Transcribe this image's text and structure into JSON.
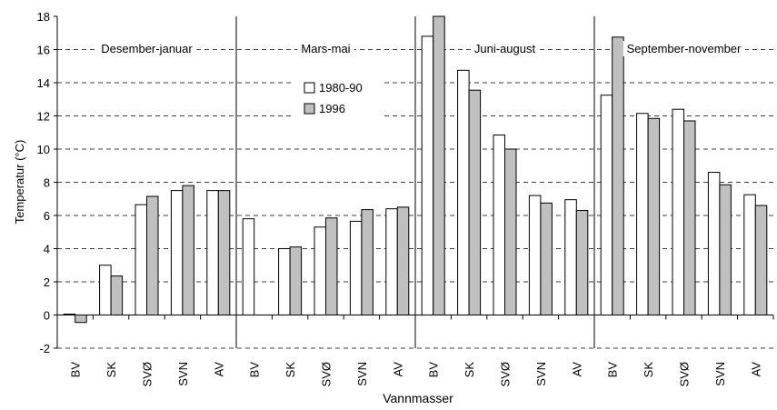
{
  "chart_data": {
    "type": "bar",
    "title": "",
    "xlabel": "Vannmasser",
    "ylabel": "Temperatur (°C)",
    "ylim": [
      -2,
      18
    ],
    "yticks": [
      -2,
      0,
      2,
      4,
      6,
      8,
      10,
      12,
      14,
      16,
      18
    ],
    "grid": "horizontal dashed",
    "legend_position": "top-center",
    "groups": [
      "Desember-januar",
      "Mars-mai",
      "Juni-august",
      "September-november"
    ],
    "water_masses": [
      "BV",
      "SK",
      "SVØ",
      "SVN",
      "AV"
    ],
    "categories": [
      "BV",
      "SK",
      "SVØ",
      "SVN",
      "AV",
      "BV",
      "SK",
      "SVØ",
      "SVN",
      "AV",
      "BV",
      "SK",
      "SVØ",
      "SVN",
      "AV",
      "BV",
      "SK",
      "SVØ",
      "SVN",
      "AV"
    ],
    "series": [
      {
        "name": "1980-90",
        "color": "#ffffff",
        "values": [
          0.05,
          3.0,
          6.65,
          7.5,
          7.5,
          5.8,
          4.0,
          5.3,
          5.65,
          6.4,
          16.8,
          14.75,
          10.85,
          7.2,
          6.95,
          13.25,
          12.15,
          12.4,
          8.6,
          7.25
        ]
      },
      {
        "name": "1996",
        "color": "#c0c0c0",
        "values": [
          -0.45,
          2.35,
          7.15,
          7.8,
          7.5,
          null,
          4.1,
          5.85,
          6.35,
          6.5,
          18.0,
          13.55,
          10.0,
          6.75,
          6.3,
          16.75,
          11.85,
          11.7,
          7.85,
          6.6
        ]
      }
    ]
  }
}
